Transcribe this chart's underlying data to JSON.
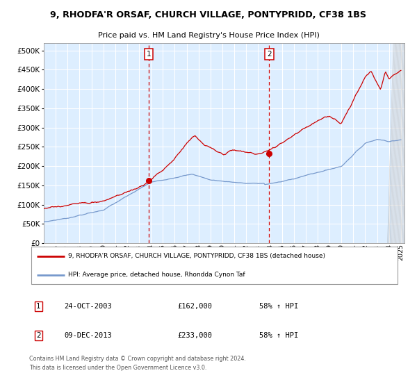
{
  "title1": "9, RHODFA'R ORSAF, CHURCH VILLAGE, PONTYPRIDD, CF38 1BS",
  "title2": "Price paid vs. HM Land Registry's House Price Index (HPI)",
  "ytick_values": [
    0,
    50000,
    100000,
    150000,
    200000,
    250000,
    300000,
    350000,
    400000,
    450000,
    500000
  ],
  "ylim": [
    0,
    520000
  ],
  "xlim_start": 1995.0,
  "xlim_end": 2025.3,
  "plot_bg_color": "#ddeeff",
  "grid_color": "#ffffff",
  "red_color": "#cc0000",
  "blue_color": "#7799cc",
  "marker1_x": 2003.82,
  "marker1_y": 162000,
  "marker2_x": 2013.94,
  "marker2_y": 233000,
  "legend_line1": "9, RHODFA'R ORSAF, CHURCH VILLAGE, PONTYPRIDD, CF38 1BS (detached house)",
  "legend_line2": "HPI: Average price, detached house, Rhondda Cynon Taf",
  "note1_label": "1",
  "note1_date": "24-OCT-2003",
  "note1_price": "£162,000",
  "note1_hpi": "58% ↑ HPI",
  "note2_label": "2",
  "note2_date": "09-DEC-2013",
  "note2_price": "£233,000",
  "note2_hpi": "58% ↑ HPI",
  "footer": "Contains HM Land Registry data © Crown copyright and database right 2024.\nThis data is licensed under the Open Government Licence v3.0.",
  "xtick_years": [
    1995,
    1996,
    1997,
    1998,
    1999,
    2000,
    2001,
    2002,
    2003,
    2004,
    2005,
    2006,
    2007,
    2008,
    2009,
    2010,
    2011,
    2012,
    2013,
    2014,
    2015,
    2016,
    2017,
    2018,
    2019,
    2020,
    2021,
    2022,
    2023,
    2024,
    2025
  ],
  "hatch_start": 2024.17,
  "hatch_end": 2025.3
}
